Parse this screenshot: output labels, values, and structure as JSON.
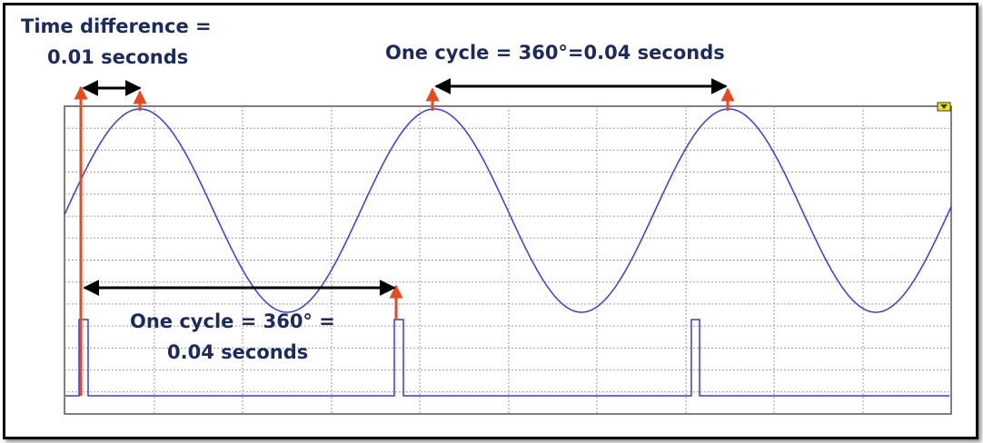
{
  "annotations": {
    "time_difference_line1": "Time difference =",
    "time_difference_line2": "0.01 seconds",
    "top_cycle": "One cycle = 360°=0.04 seconds",
    "bottom_cycle_line1": "One cycle = 360° =",
    "bottom_cycle_line2": "0.04 seconds"
  },
  "colors": {
    "wave": "#3a3ae0",
    "grid": "#9c9c9c",
    "marker": "#e84a1e",
    "arrow": "#000000",
    "text": "#1c2a5e",
    "corner_indicator": "#f2e600"
  },
  "icons": [
    "corner-indicator-icon"
  ]
}
